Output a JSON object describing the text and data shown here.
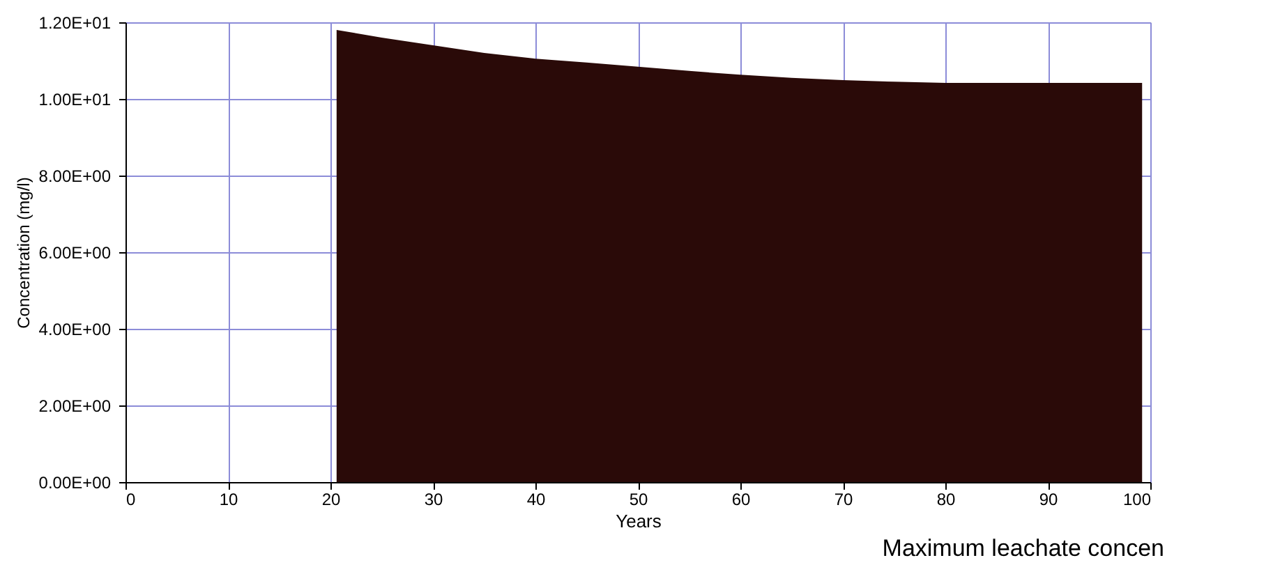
{
  "chart_data": {
    "type": "area",
    "xlabel": "Years",
    "ylabel": "Concentration (mg/l)",
    "annotations": [
      "Maximum leachate concen"
    ],
    "series": [
      {
        "color": "#2a0a08",
        "x": [
          0,
          20.6,
          20.6,
          25,
          30,
          35,
          40,
          45,
          50,
          55,
          60,
          65,
          70,
          75,
          80,
          85,
          90,
          95,
          99.2,
          99.2
        ],
        "values": [
          0,
          0,
          11.8,
          11.6,
          11.4,
          11.2,
          11.05,
          10.95,
          10.84,
          10.73,
          10.63,
          10.55,
          10.49,
          10.45,
          10.42,
          10.42,
          10.42,
          10.42,
          10.42,
          0
        ]
      }
    ],
    "xlim": [
      0,
      100
    ],
    "xticks": [
      0,
      10,
      20,
      30,
      40,
      50,
      60,
      70,
      80,
      90,
      100
    ],
    "ylim": [
      0,
      12
    ],
    "yticks": [
      {
        "value": 0,
        "label": "0.00E+00"
      },
      {
        "value": 2,
        "label": "2.00E+00"
      },
      {
        "value": 4,
        "label": "4.00E+00"
      },
      {
        "value": 6,
        "label": "6.00E+00"
      },
      {
        "value": 8,
        "label": "8.00E+00"
      },
      {
        "value": 10,
        "label": "1.00E+01"
      },
      {
        "value": 12,
        "label": "1.20E+01"
      }
    ],
    "grid": true
  }
}
